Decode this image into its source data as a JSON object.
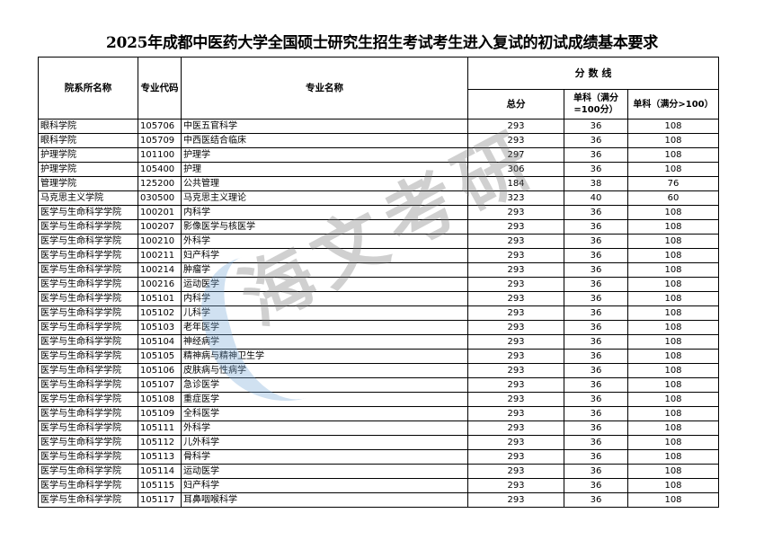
{
  "title": "2025年成都中医药大学全国硕士研究生招生考试考生进入复试的初试成绩基本要求",
  "watermark": "海文考研",
  "headers": {
    "dept": "院系所名称",
    "code": "专业代码",
    "major": "专业名称",
    "score_line": "分 数 线",
    "total": "总分",
    "single100": "单科（满分=100分）",
    "single_gt100": "单科（满分>100）"
  },
  "rows": [
    [
      "眼科学院",
      "105706",
      "中医五官科学",
      "293",
      "36",
      "108"
    ],
    [
      "眼科学院",
      "105709",
      "中西医结合临床",
      "293",
      "36",
      "108"
    ],
    [
      "护理学院",
      "101100",
      "护理学",
      "297",
      "36",
      "108"
    ],
    [
      "护理学院",
      "105400",
      "护理",
      "306",
      "36",
      "108"
    ],
    [
      "管理学院",
      "125200",
      "公共管理",
      "184",
      "38",
      "76"
    ],
    [
      "马克思主义学院",
      "030500",
      "马克思主义理论",
      "323",
      "40",
      "60"
    ],
    [
      "医学与生命科学学院",
      "100201",
      "内科学",
      "293",
      "36",
      "108"
    ],
    [
      "医学与生命科学学院",
      "100207",
      "影像医学与核医学",
      "293",
      "36",
      "108"
    ],
    [
      "医学与生命科学学院",
      "100210",
      "外科学",
      "293",
      "36",
      "108"
    ],
    [
      "医学与生命科学学院",
      "100211",
      "妇产科学",
      "293",
      "36",
      "108"
    ],
    [
      "医学与生命科学学院",
      "100214",
      "肿瘤学",
      "293",
      "36",
      "108"
    ],
    [
      "医学与生命科学学院",
      "100216",
      "运动医学",
      "293",
      "36",
      "108"
    ],
    [
      "医学与生命科学学院",
      "105101",
      "内科学",
      "293",
      "36",
      "108"
    ],
    [
      "医学与生命科学学院",
      "105102",
      "儿科学",
      "293",
      "36",
      "108"
    ],
    [
      "医学与生命科学学院",
      "105103",
      "老年医学",
      "293",
      "36",
      "108"
    ],
    [
      "医学与生命科学学院",
      "105104",
      "神经病学",
      "293",
      "36",
      "108"
    ],
    [
      "医学与生命科学学院",
      "105105",
      "精神病与精神卫生学",
      "293",
      "36",
      "108"
    ],
    [
      "医学与生命科学学院",
      "105106",
      "皮肤病与性病学",
      "293",
      "36",
      "108"
    ],
    [
      "医学与生命科学学院",
      "105107",
      "急诊医学",
      "293",
      "36",
      "108"
    ],
    [
      "医学与生命科学学院",
      "105108",
      "重症医学",
      "293",
      "36",
      "108"
    ],
    [
      "医学与生命科学学院",
      "105109",
      "全科医学",
      "293",
      "36",
      "108"
    ],
    [
      "医学与生命科学学院",
      "105111",
      "外科学",
      "293",
      "36",
      "108"
    ],
    [
      "医学与生命科学学院",
      "105112",
      "儿外科学",
      "293",
      "36",
      "108"
    ],
    [
      "医学与生命科学学院",
      "105113",
      "骨科学",
      "293",
      "36",
      "108"
    ],
    [
      "医学与生命科学学院",
      "105114",
      "运动医学",
      "293",
      "36",
      "108"
    ],
    [
      "医学与生命科学学院",
      "105115",
      "妇产科学",
      "293",
      "36",
      "108"
    ],
    [
      "医学与生命科学学院",
      "105117",
      "耳鼻咽喉科学",
      "293",
      "36",
      "108"
    ]
  ]
}
